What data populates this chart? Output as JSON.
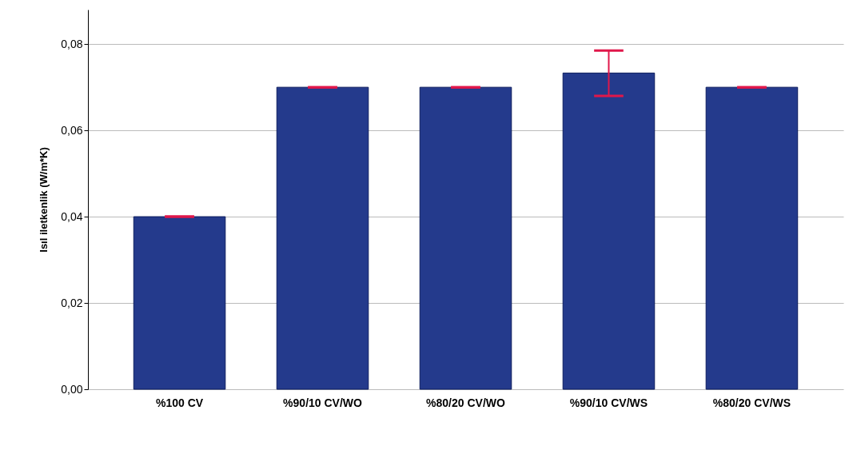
{
  "chart_data": {
    "type": "bar",
    "ylabel": "Isıl iletkenlik (W/m*K)",
    "categories": [
      "%100 CV",
      "%90/10 CV/WO",
      "%80/20 CV/WO",
      "%90/10 CV/WS",
      "%80/20 CV/WS"
    ],
    "values": [
      0.04,
      0.07,
      0.07,
      0.0733,
      0.07
    ],
    "color": "#243a8c",
    "errors": [
      0,
      0,
      0,
      [
        0.068,
        0.0785
      ],
      0
    ],
    "ylim": [
      0,
      0.088
    ],
    "yticks": [
      {
        "value": 0,
        "label": "0,00"
      },
      {
        "value": 0.02,
        "label": "0,02"
      },
      {
        "value": 0.04,
        "label": "0,04"
      },
      {
        "value": 0.06,
        "label": "0,06"
      },
      {
        "value": 0.08,
        "label": "0,08"
      }
    ],
    "grid": "y"
  }
}
